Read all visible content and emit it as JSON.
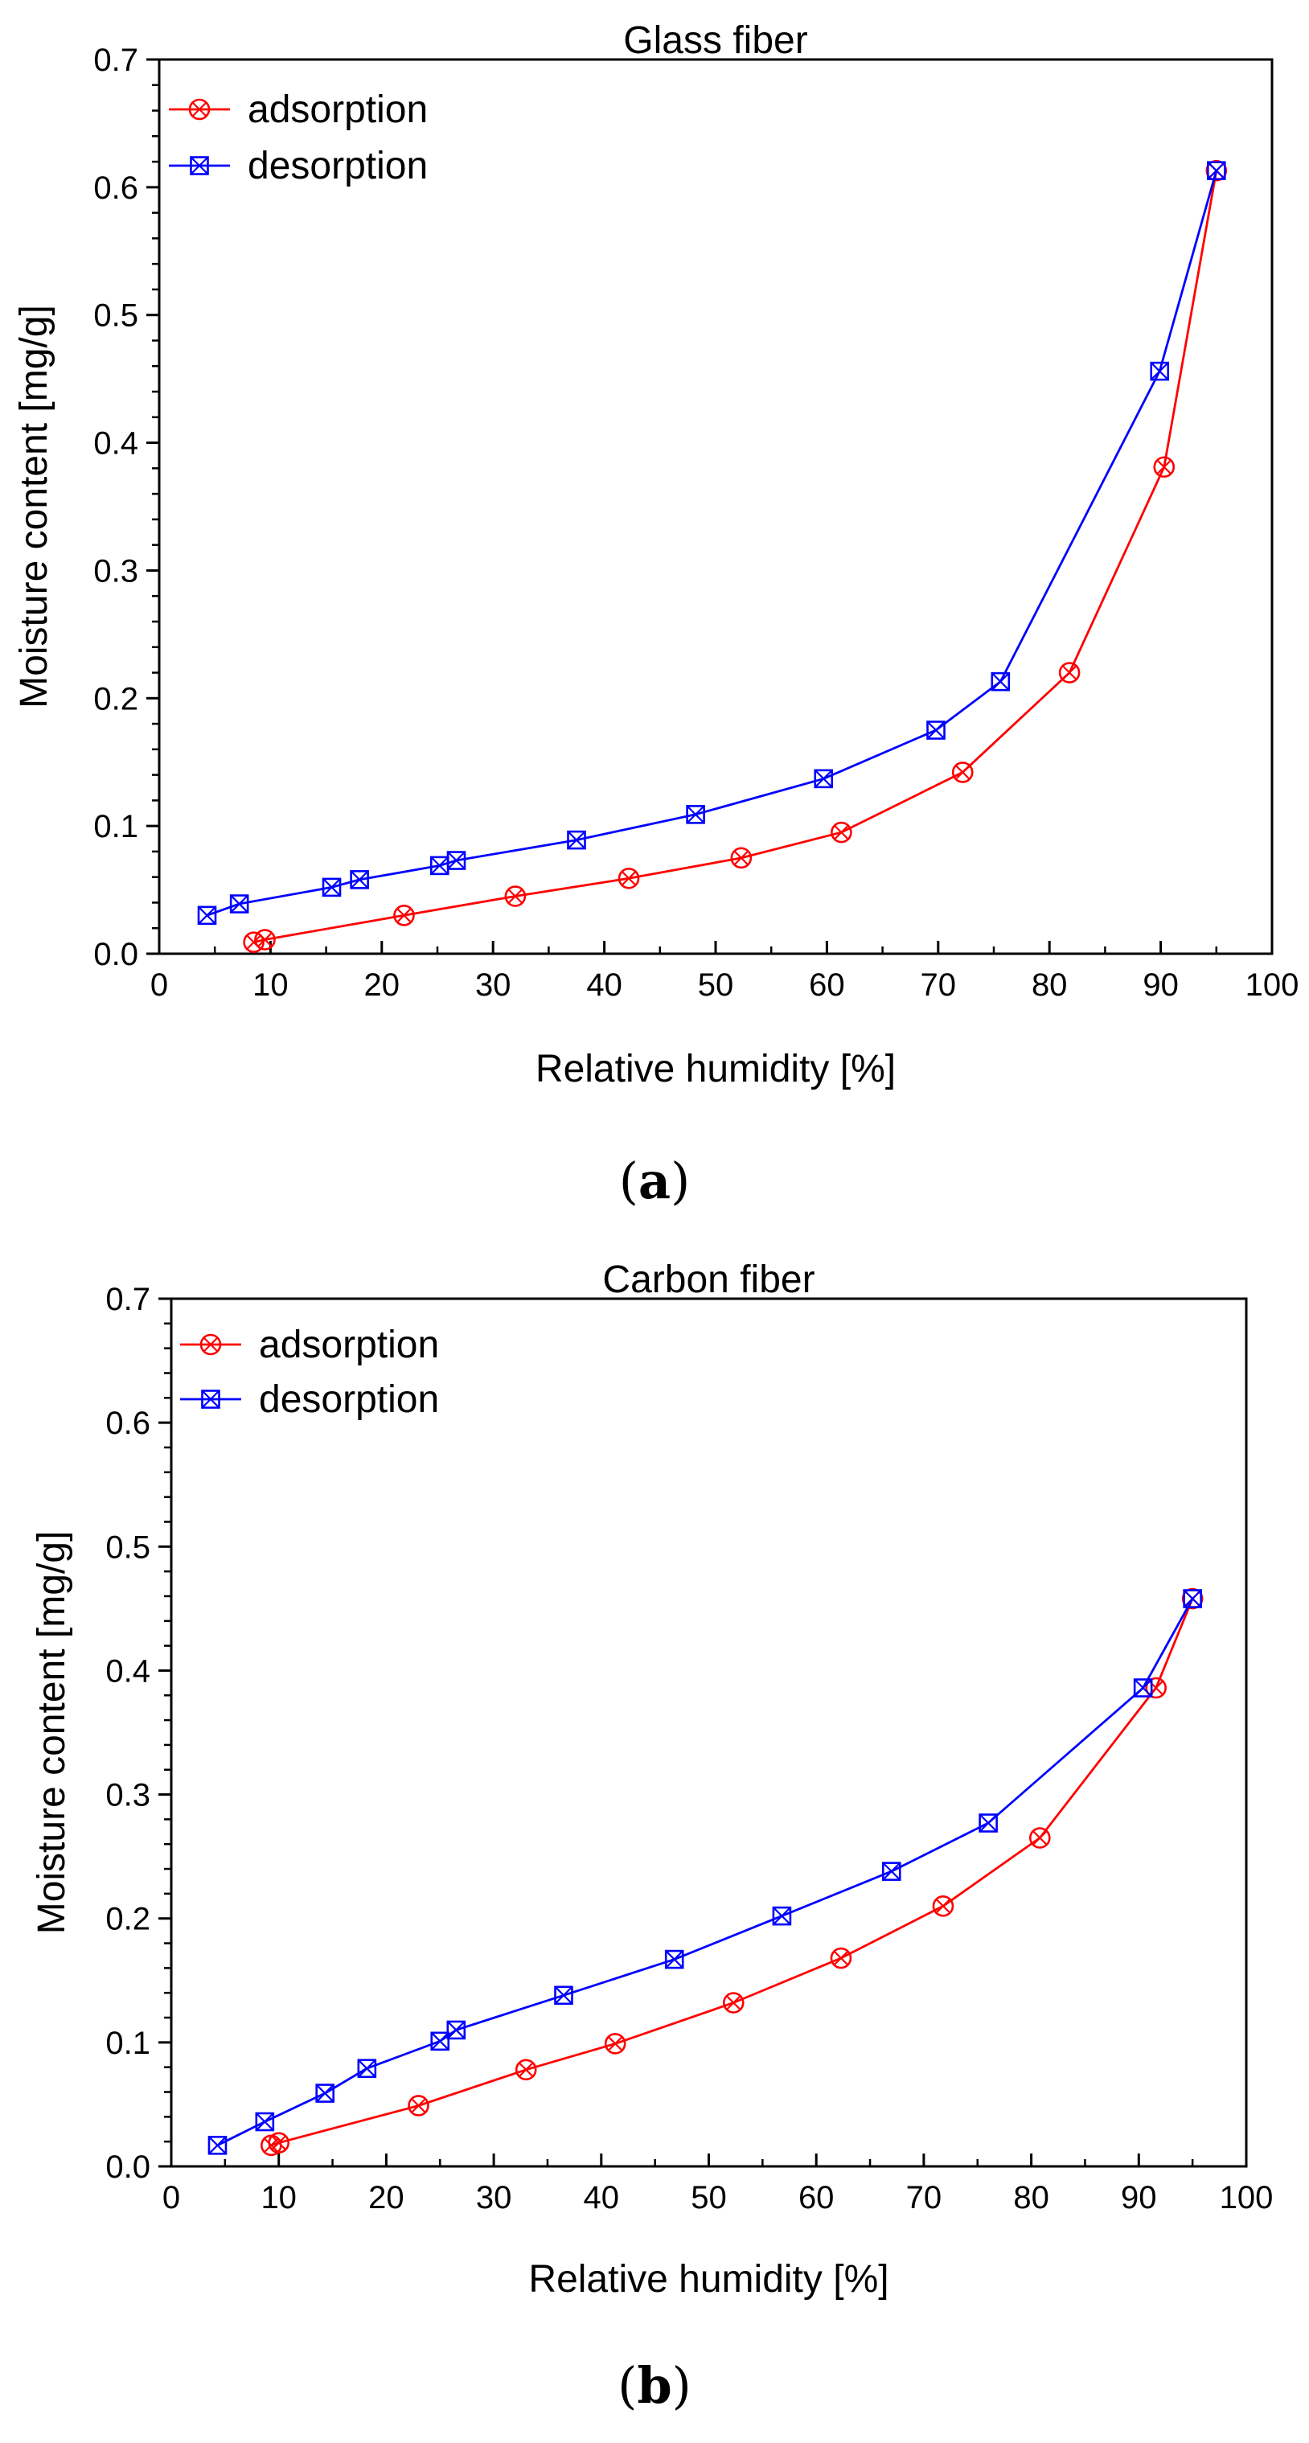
{
  "colors": {
    "adsorption": "#ff0000",
    "desorption": "#0000ff",
    "axis": "#000000"
  },
  "chart_data": [
    {
      "type": "line",
      "panel_label_open": "(",
      "panel_label_letter": "a",
      "panel_label_close": ")",
      "title": "Glass fiber",
      "xlabel": "Relative humidity [%]",
      "ylabel": "Moisture content [mg/g]",
      "xlim": [
        0,
        100
      ],
      "ylim": [
        0,
        0.7
      ],
      "x_ticks": [
        "0",
        "10",
        "20",
        "30",
        "40",
        "50",
        "60",
        "70",
        "80",
        "90",
        "100"
      ],
      "y_ticks": [
        "0.0",
        "0.1",
        "0.2",
        "0.3",
        "0.4",
        "0.5",
        "0.6",
        "0.7"
      ],
      "legend_position": "top-left",
      "series": [
        {
          "name": "adsorption",
          "marker": "circle-x",
          "color": "#ff0000",
          "x": [
            8.5,
            9.5,
            22,
            32,
            42.2,
            52.3,
            61.3,
            72.2,
            81.8,
            90.3,
            95
          ],
          "y": [
            0.009,
            0.011,
            0.03,
            0.045,
            0.059,
            0.075,
            0.095,
            0.142,
            0.22,
            0.381,
            0.613
          ]
        },
        {
          "name": "desorption",
          "marker": "square-x",
          "color": "#0000ff",
          "x": [
            4.3,
            7.2,
            15.5,
            18,
            25.2,
            26.7,
            37.5,
            48.2,
            59.7,
            69.8,
            75.6,
            89.9,
            95
          ],
          "y": [
            0.03,
            0.039,
            0.052,
            0.058,
            0.069,
            0.073,
            0.089,
            0.109,
            0.137,
            0.175,
            0.213,
            0.456,
            0.613
          ]
        }
      ]
    },
    {
      "type": "line",
      "panel_label_open": "(",
      "panel_label_letter": "b",
      "panel_label_close": ")",
      "title": "Carbon fiber",
      "xlabel": "Relative humidity [%]",
      "ylabel": "Moisture content [mg/g]",
      "xlim": [
        0,
        100
      ],
      "ylim": [
        0,
        0.7
      ],
      "x_ticks": [
        "0",
        "10",
        "20",
        "30",
        "40",
        "50",
        "60",
        "70",
        "80",
        "90",
        "100"
      ],
      "y_ticks": [
        "0.0",
        "0.1",
        "0.2",
        "0.3",
        "0.4",
        "0.5",
        "0.6",
        "0.7"
      ],
      "legend_position": "top-left",
      "series": [
        {
          "name": "adsorption",
          "marker": "circle-x",
          "color": "#ff0000",
          "x": [
            9.3,
            10,
            23,
            33,
            41.3,
            52.3,
            62.3,
            71.8,
            80.8,
            91.6,
            95
          ],
          "y": [
            0.017,
            0.019,
            0.049,
            0.078,
            0.099,
            0.132,
            0.168,
            0.21,
            0.265,
            0.386,
            0.458
          ]
        },
        {
          "name": "desorption",
          "marker": "square-x",
          "color": "#0000ff",
          "x": [
            4.3,
            8.7,
            14.3,
            18.2,
            25,
            26.5,
            36.5,
            46.8,
            56.8,
            67,
            76,
            90.4,
            95
          ],
          "y": [
            0.017,
            0.036,
            0.059,
            0.079,
            0.101,
            0.11,
            0.138,
            0.167,
            0.202,
            0.238,
            0.277,
            0.386,
            0.458
          ]
        }
      ]
    }
  ]
}
